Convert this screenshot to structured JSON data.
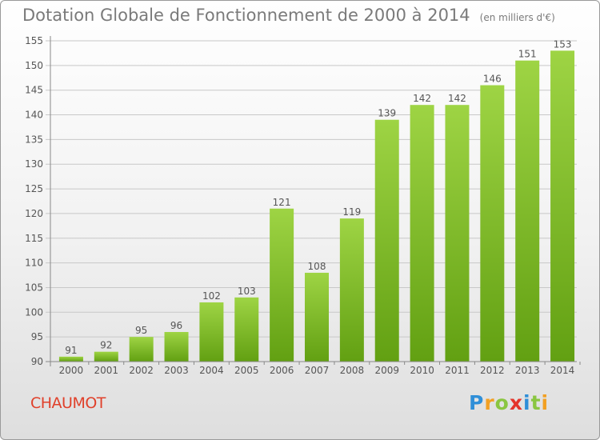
{
  "title": "Dotation Globale de Fonctionnement de 2000 à 2014",
  "subtitle": "(en milliers d'€)",
  "commune": "CHAUMOT",
  "logo": {
    "letters": [
      "P",
      "r",
      "o",
      "x",
      "i",
      "t",
      "i"
    ],
    "colors": [
      "#2f8fd8",
      "#f2a023",
      "#8ac641",
      "#e4342a",
      "#2f8fd8",
      "#8ac641",
      "#f2a023"
    ]
  },
  "colors": {
    "bar_top": "#9ed444",
    "bar_bottom": "#62a012",
    "grid": "#c8c8c8",
    "axis_text": "#555555",
    "title": "#7a7a7a",
    "commune": "#e0402a"
  },
  "chart_data": {
    "type": "bar",
    "categories": [
      "2000",
      "2001",
      "2002",
      "2003",
      "2004",
      "2005",
      "2006",
      "2007",
      "2008",
      "2009",
      "2010",
      "2011",
      "2012",
      "2013",
      "2014"
    ],
    "values": [
      91,
      92,
      95,
      96,
      102,
      103,
      121,
      108,
      119,
      139,
      142,
      142,
      146,
      151,
      153
    ],
    "ylim": [
      90,
      155
    ],
    "yticks": [
      90,
      95,
      100,
      105,
      110,
      115,
      120,
      125,
      130,
      135,
      140,
      145,
      150,
      155
    ],
    "grid": true,
    "title": "Dotation Globale de Fonctionnement de 2000 à 2014",
    "xlabel": "",
    "ylabel": ""
  }
}
